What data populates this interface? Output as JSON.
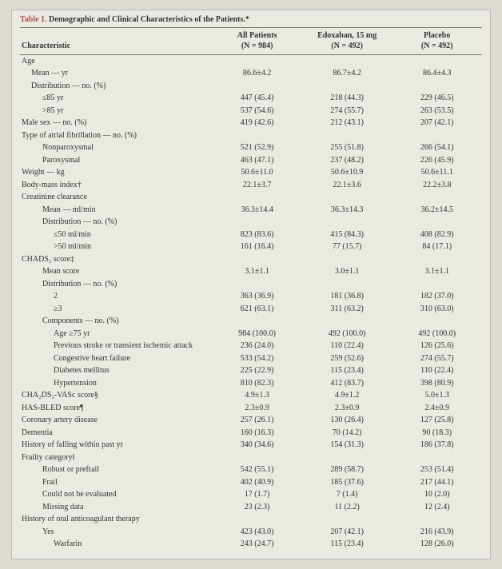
{
  "title_prefix": "Table 1.",
  "title_rest": " Demographic and Clinical Characteristics of the Patients.*",
  "columns": {
    "characteristic": "Characteristic",
    "all": "All Patients",
    "all_n": "(N = 984)",
    "edo": "Edoxaban, 15 mg",
    "edo_n": "(N = 492)",
    "placebo": "Placebo",
    "placebo_n": "(N = 492)"
  },
  "rows": [
    {
      "label": "Age",
      "indent": 0
    },
    {
      "label": "Mean — yr",
      "indent": 1,
      "all": "86.6±4.2",
      "edo": "86.7±4.2",
      "placebo": "86.4±4.3"
    },
    {
      "label": "Distribution — no. (%)",
      "indent": 1
    },
    {
      "label": "≤85 yr",
      "indent": 2,
      "all": "447 (45.4)",
      "edo": "218 (44.3)",
      "placebo": "229 (46.5)"
    },
    {
      "label": ">85 yr",
      "indent": 2,
      "all": "537 (54.6)",
      "edo": "274 (55.7)",
      "placebo": "263 (53.5)"
    },
    {
      "label": "Male sex — no. (%)",
      "indent": 0,
      "all": "419 (42.6)",
      "edo": "212 (43.1)",
      "placebo": "207 (42.1)"
    },
    {
      "label": "Type of atrial fibrillation — no. (%)",
      "indent": 0
    },
    {
      "label": "Nonparoxysmal",
      "indent": 2,
      "all": "521 (52.9)",
      "edo": "255 (51.8)",
      "placebo": "266 (54.1)"
    },
    {
      "label": "Paroxysmal",
      "indent": 2,
      "all": "463 (47.1)",
      "edo": "237 (48.2)",
      "placebo": "226 (45.9)"
    },
    {
      "label": "Weight — kg",
      "indent": 0,
      "all": "50.6±11.0",
      "edo": "50.6±10.9",
      "placebo": "50.6±11.1"
    },
    {
      "label": "Body-mass index†",
      "indent": 0,
      "all": "22.1±3.7",
      "edo": "22.1±3.6",
      "placebo": "22.2±3.8"
    },
    {
      "label": "Creatinine clearance",
      "indent": 0
    },
    {
      "label": "Mean — ml/min",
      "indent": 2,
      "all": "36.3±14.4",
      "edo": "36.3±14.3",
      "placebo": "36.2±14.5"
    },
    {
      "label": "Distribution — no. (%)",
      "indent": 2
    },
    {
      "label": "≤50 ml/min",
      "indent": 3,
      "all": "823 (83.6)",
      "edo": "415 (84.3)",
      "placebo": "408 (82.9)"
    },
    {
      "label": ">50 ml/min",
      "indent": 3,
      "all": "161 (16.4)",
      "edo": "77 (15.7)",
      "placebo": "84 (17.1)"
    },
    {
      "label": "CHADS₂ score‡",
      "indent": 0
    },
    {
      "label": "Mean score",
      "indent": 2,
      "all": "3.1±1.1",
      "edo": "3.0±1.1",
      "placebo": "3.1±1.1"
    },
    {
      "label": "Distribution — no. (%)",
      "indent": 2
    },
    {
      "label": "2",
      "indent": 3,
      "all": "363 (36.9)",
      "edo": "181 (36.8)",
      "placebo": "182 (37.0)"
    },
    {
      "label": "≥3",
      "indent": 3,
      "all": "621 (63.1)",
      "edo": "311 (63.2)",
      "placebo": "310 (63.0)"
    },
    {
      "label": "Components — no. (%)",
      "indent": 2
    },
    {
      "label": "Age ≥75 yr",
      "indent": 3,
      "all": "984 (100.0)",
      "edo": "492 (100.0)",
      "placebo": "492 (100.0)"
    },
    {
      "label": "Previous stroke or transient ischemic attack",
      "indent": 3,
      "all": "236 (24.0)",
      "edo": "110 (22.4)",
      "placebo": "126 (25.6)"
    },
    {
      "label": "Congestive heart failure",
      "indent": 3,
      "all": "533 (54.2)",
      "edo": "259 (52.6)",
      "placebo": "274 (55.7)"
    },
    {
      "label": "Diabetes mellitus",
      "indent": 3,
      "all": "225 (22.9)",
      "edo": "115 (23.4)",
      "placebo": "110 (22.4)"
    },
    {
      "label": "Hypertension",
      "indent": 3,
      "all": "810 (82.3)",
      "edo": "412 (83.7)",
      "placebo": "398 (80.9)"
    },
    {
      "label": "CHA₂DS₂-VASc score§",
      "indent": 0,
      "all": "4.9±1.3",
      "edo": "4.9±1.2",
      "placebo": "5.0±1.3"
    },
    {
      "label": "HAS-BLED score¶",
      "indent": 0,
      "all": "2.3±0.9",
      "edo": "2.3±0.9",
      "placebo": "2.4±0.9"
    },
    {
      "label": "Coronary artery disease",
      "indent": 0,
      "all": "257 (26.1)",
      "edo": "130 (26.4)",
      "placebo": "127 (25.8)"
    },
    {
      "label": "Dementia",
      "indent": 0,
      "all": "160 (16.3)",
      "edo": "70 (14.2)",
      "placebo": "90 (18.3)"
    },
    {
      "label": "History of falling within past yr",
      "indent": 0,
      "all": "340 (34.6)",
      "edo": "154 (31.3)",
      "placebo": "186 (37.8)"
    },
    {
      "label": "Frailty category‖",
      "indent": 0
    },
    {
      "label": "Robust or prefrail",
      "indent": 2,
      "all": "542 (55.1)",
      "edo": "289 (58.7)",
      "placebo": "253 (51.4)"
    },
    {
      "label": "Frail",
      "indent": 2,
      "all": "402 (40.9)",
      "edo": "185 (37.6)",
      "placebo": "217 (44.1)"
    },
    {
      "label": "Could not be evaluated",
      "indent": 2,
      "all": "17 (1.7)",
      "edo": "7 (1.4)",
      "placebo": "10 (2.0)"
    },
    {
      "label": "Missing data",
      "indent": 2,
      "all": "23 (2.3)",
      "edo": "11 (2.2)",
      "placebo": "12 (2.4)"
    },
    {
      "label": "History of oral anticoagulant therapy",
      "indent": 0
    },
    {
      "label": "Yes",
      "indent": 2,
      "all": "423 (43.0)",
      "edo": "207 (42.1)",
      "placebo": "216 (43.9)"
    },
    {
      "label": "Warfarin",
      "indent": 3,
      "all": "243 (24.7)",
      "edo": "115 (23.4)",
      "placebo": "128 (26.0)"
    }
  ]
}
